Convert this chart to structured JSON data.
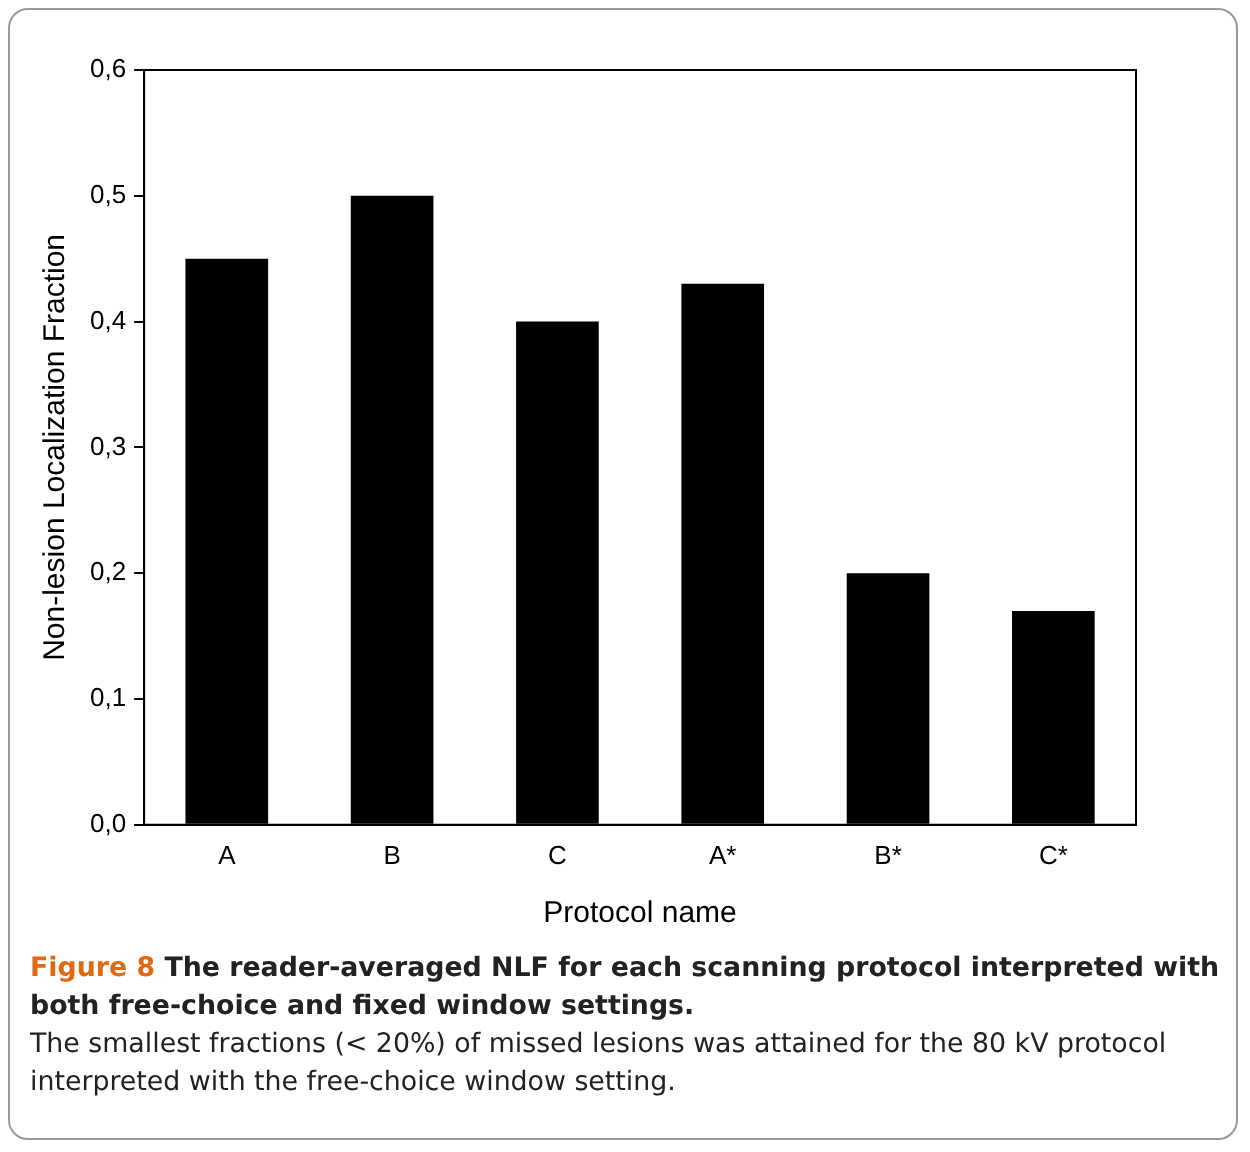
{
  "chart_data": {
    "type": "bar",
    "categories": [
      "A",
      "B",
      "C",
      "A*",
      "B*",
      "C*"
    ],
    "values": [
      0.45,
      0.5,
      0.4,
      0.43,
      0.2,
      0.17
    ],
    "color": "#000000",
    "xlabel": "Protocol name",
    "ylabel": "Non-lesion Localization Fraction",
    "ylim": [
      0,
      0.6
    ],
    "yticks": [
      {
        "value": 0,
        "label": "0,0"
      },
      {
        "value": 0.1,
        "label": "0,1"
      },
      {
        "value": 0.2,
        "label": "0,2"
      },
      {
        "value": 0.3,
        "label": "0,3"
      },
      {
        "value": 0.4,
        "label": "0,4"
      },
      {
        "value": 0.5,
        "label": "0,5"
      },
      {
        "value": 0.6,
        "label": "0,6"
      }
    ],
    "grid": false,
    "legend": false,
    "annotations": [
      "Figure 8",
      "The reader-averaged NLF for each scanning protocol interpreted with both free-choice and fixed window settings.",
      "The smallest fractions (< 20%) of missed lesions was attained for the 80 kV protocol interpreted with the free-choice window setting."
    ]
  }
}
